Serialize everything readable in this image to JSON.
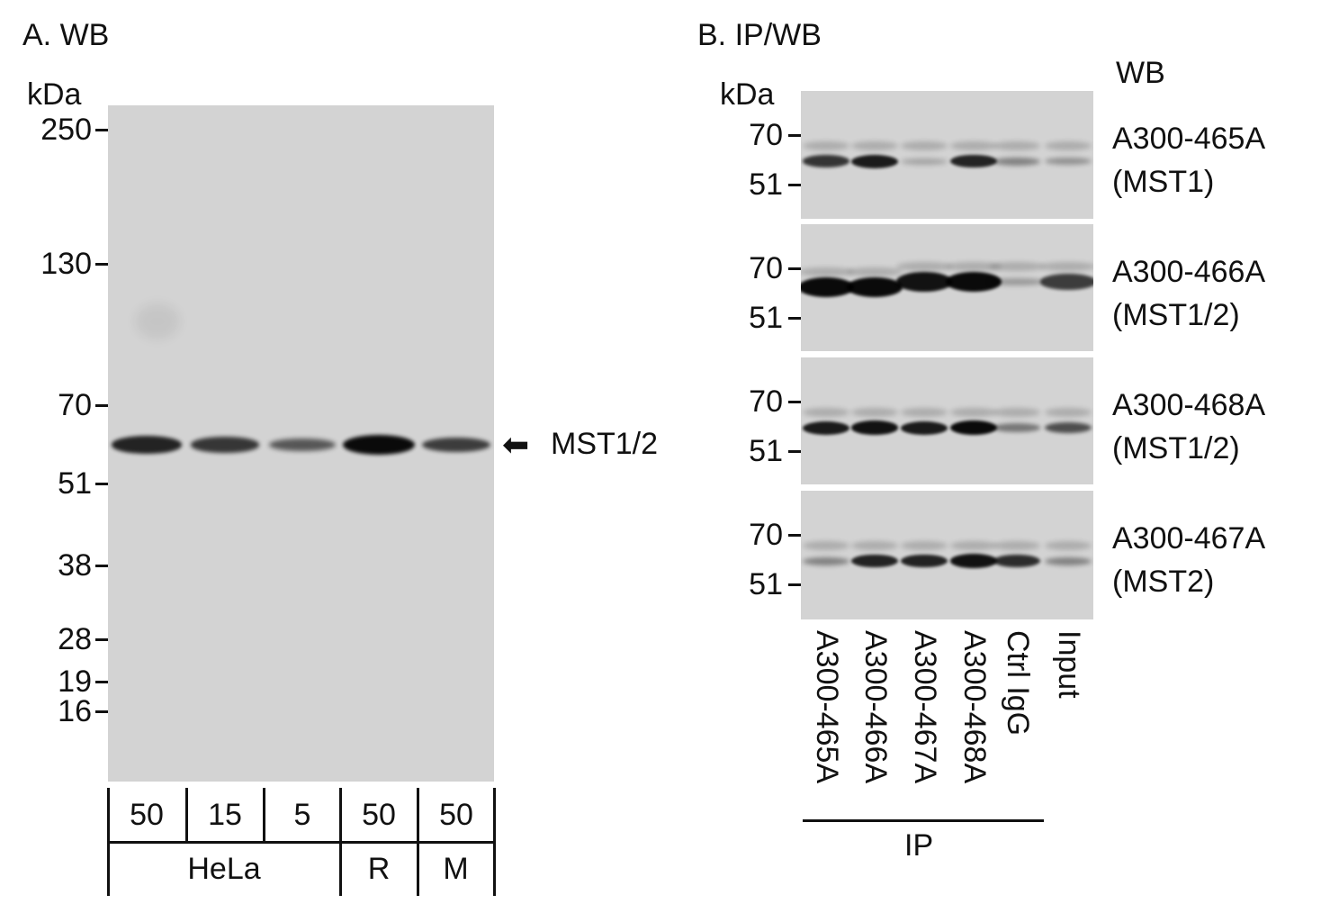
{
  "panel_a": {
    "title": "A. WB",
    "unit": "kDa",
    "markers": [
      "250",
      "130",
      "70",
      "51",
      "38",
      "28",
      "19",
      "16"
    ],
    "arrow_label": "MST1/2",
    "lane_amounts": [
      "50",
      "15",
      "5",
      "50",
      "50"
    ],
    "groups": [
      "HeLa",
      "R",
      "M"
    ],
    "band_intensity": [
      0.8,
      0.65,
      0.4,
      1.0,
      0.6
    ]
  },
  "panel_b": {
    "title": "B. IP/WB",
    "unit": "kDa",
    "wb_header": "WB",
    "markers": [
      "70",
      "51"
    ],
    "blots": [
      {
        "antibody": "A300-465A",
        "target": "(MST1)",
        "band_intensity": [
          0.75,
          0.9,
          0.1,
          0.85,
          0.3,
          0.2
        ]
      },
      {
        "antibody": "A300-466A",
        "target": "(MST1/2)",
        "band_intensity": [
          1.0,
          1.0,
          0.95,
          1.0,
          0.15,
          0.7
        ]
      },
      {
        "antibody": "A300-468A",
        "target": "(MST1/2)",
        "band_intensity": [
          0.9,
          0.95,
          0.9,
          1.0,
          0.35,
          0.6
        ]
      },
      {
        "antibody": "A300-467A",
        "target": "(MST2)",
        "band_intensity": [
          0.3,
          0.85,
          0.85,
          0.95,
          0.8,
          0.3
        ]
      }
    ],
    "lanes": [
      "A300-465A",
      "A300-466A",
      "A300-467A",
      "A300-468A",
      "Ctrl IgG",
      "Input"
    ],
    "ip_label": "IP"
  }
}
